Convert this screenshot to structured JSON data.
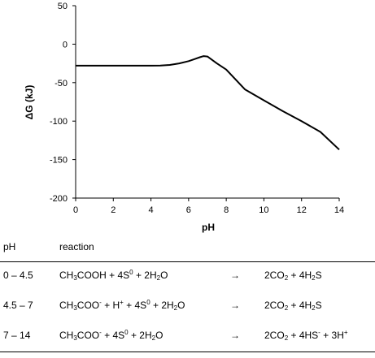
{
  "chart_data": {
    "type": "line",
    "title": "",
    "xlabel": "pH",
    "ylabel": "ΔG (kJ)",
    "xlim": [
      0,
      14
    ],
    "ylim": [
      -200,
      50
    ],
    "xticks": [
      0,
      2,
      4,
      6,
      8,
      10,
      12,
      14
    ],
    "yticks": [
      50,
      0,
      -50,
      -100,
      -150,
      -200
    ],
    "grid": false,
    "series": [
      {
        "x": [
          0,
          1,
          2,
          3,
          4,
          4.5,
          5,
          5.5,
          6,
          6.3,
          6.6,
          6.8,
          7,
          7.2,
          7.5,
          8,
          9,
          10,
          11,
          12,
          13,
          14
        ],
        "y": [
          -28,
          -28,
          -28,
          -28,
          -28,
          -27.8,
          -27,
          -25,
          -22,
          -19.5,
          -17,
          -15.5,
          -16,
          -19.5,
          -25,
          -33,
          -59,
          -73,
          -87,
          -100,
          -114,
          -137
        ]
      }
    ]
  },
  "table": {
    "headers": {
      "ph": "pH",
      "reaction": "reaction"
    },
    "rows": [
      {
        "ph": "0 – 4.5",
        "reaction": [
          {
            "t": "CH"
          },
          {
            "t": "3",
            "s": "sub"
          },
          {
            "t": "COOH  + 4S"
          },
          {
            "t": "0",
            "s": "sup"
          },
          {
            "t": " + 2H"
          },
          {
            "t": "2",
            "s": "sub"
          },
          {
            "t": "O"
          }
        ],
        "arrow": "→",
        "products": [
          {
            "t": "2CO"
          },
          {
            "t": "2",
            "s": "sub"
          },
          {
            "t": " + 4H"
          },
          {
            "t": "2",
            "s": "sub"
          },
          {
            "t": "S"
          }
        ]
      },
      {
        "ph": "4.5 – 7",
        "reaction": [
          {
            "t": "CH"
          },
          {
            "t": "3",
            "s": "sub"
          },
          {
            "t": "COO"
          },
          {
            "t": "-",
            "s": "sup"
          },
          {
            "t": " + H"
          },
          {
            "t": "+",
            "s": "sup"
          },
          {
            "t": " + 4S"
          },
          {
            "t": "0",
            "s": "sup"
          },
          {
            "t": " + 2H"
          },
          {
            "t": "2",
            "s": "sub"
          },
          {
            "t": "O"
          }
        ],
        "arrow": "→",
        "products": [
          {
            "t": "2CO"
          },
          {
            "t": "2",
            "s": "sub"
          },
          {
            "t": " + 4H"
          },
          {
            "t": "2",
            "s": "sub"
          },
          {
            "t": "S"
          }
        ]
      },
      {
        "ph": "7 – 14",
        "reaction": [
          {
            "t": "CH"
          },
          {
            "t": "3",
            "s": "sub"
          },
          {
            "t": "COO"
          },
          {
            "t": "-",
            "s": "sup"
          },
          {
            "t": " + 4S"
          },
          {
            "t": "0",
            "s": "sup"
          },
          {
            "t": " + 2H"
          },
          {
            "t": "2",
            "s": "sub"
          },
          {
            "t": "O"
          }
        ],
        "arrow": "→",
        "products": [
          {
            "t": "2CO"
          },
          {
            "t": "2",
            "s": "sub"
          },
          {
            "t": " + 4HS"
          },
          {
            "t": "-",
            "s": "sup"
          },
          {
            "t": " + 3H"
          },
          {
            "t": "+",
            "s": "sup"
          }
        ]
      }
    ]
  }
}
